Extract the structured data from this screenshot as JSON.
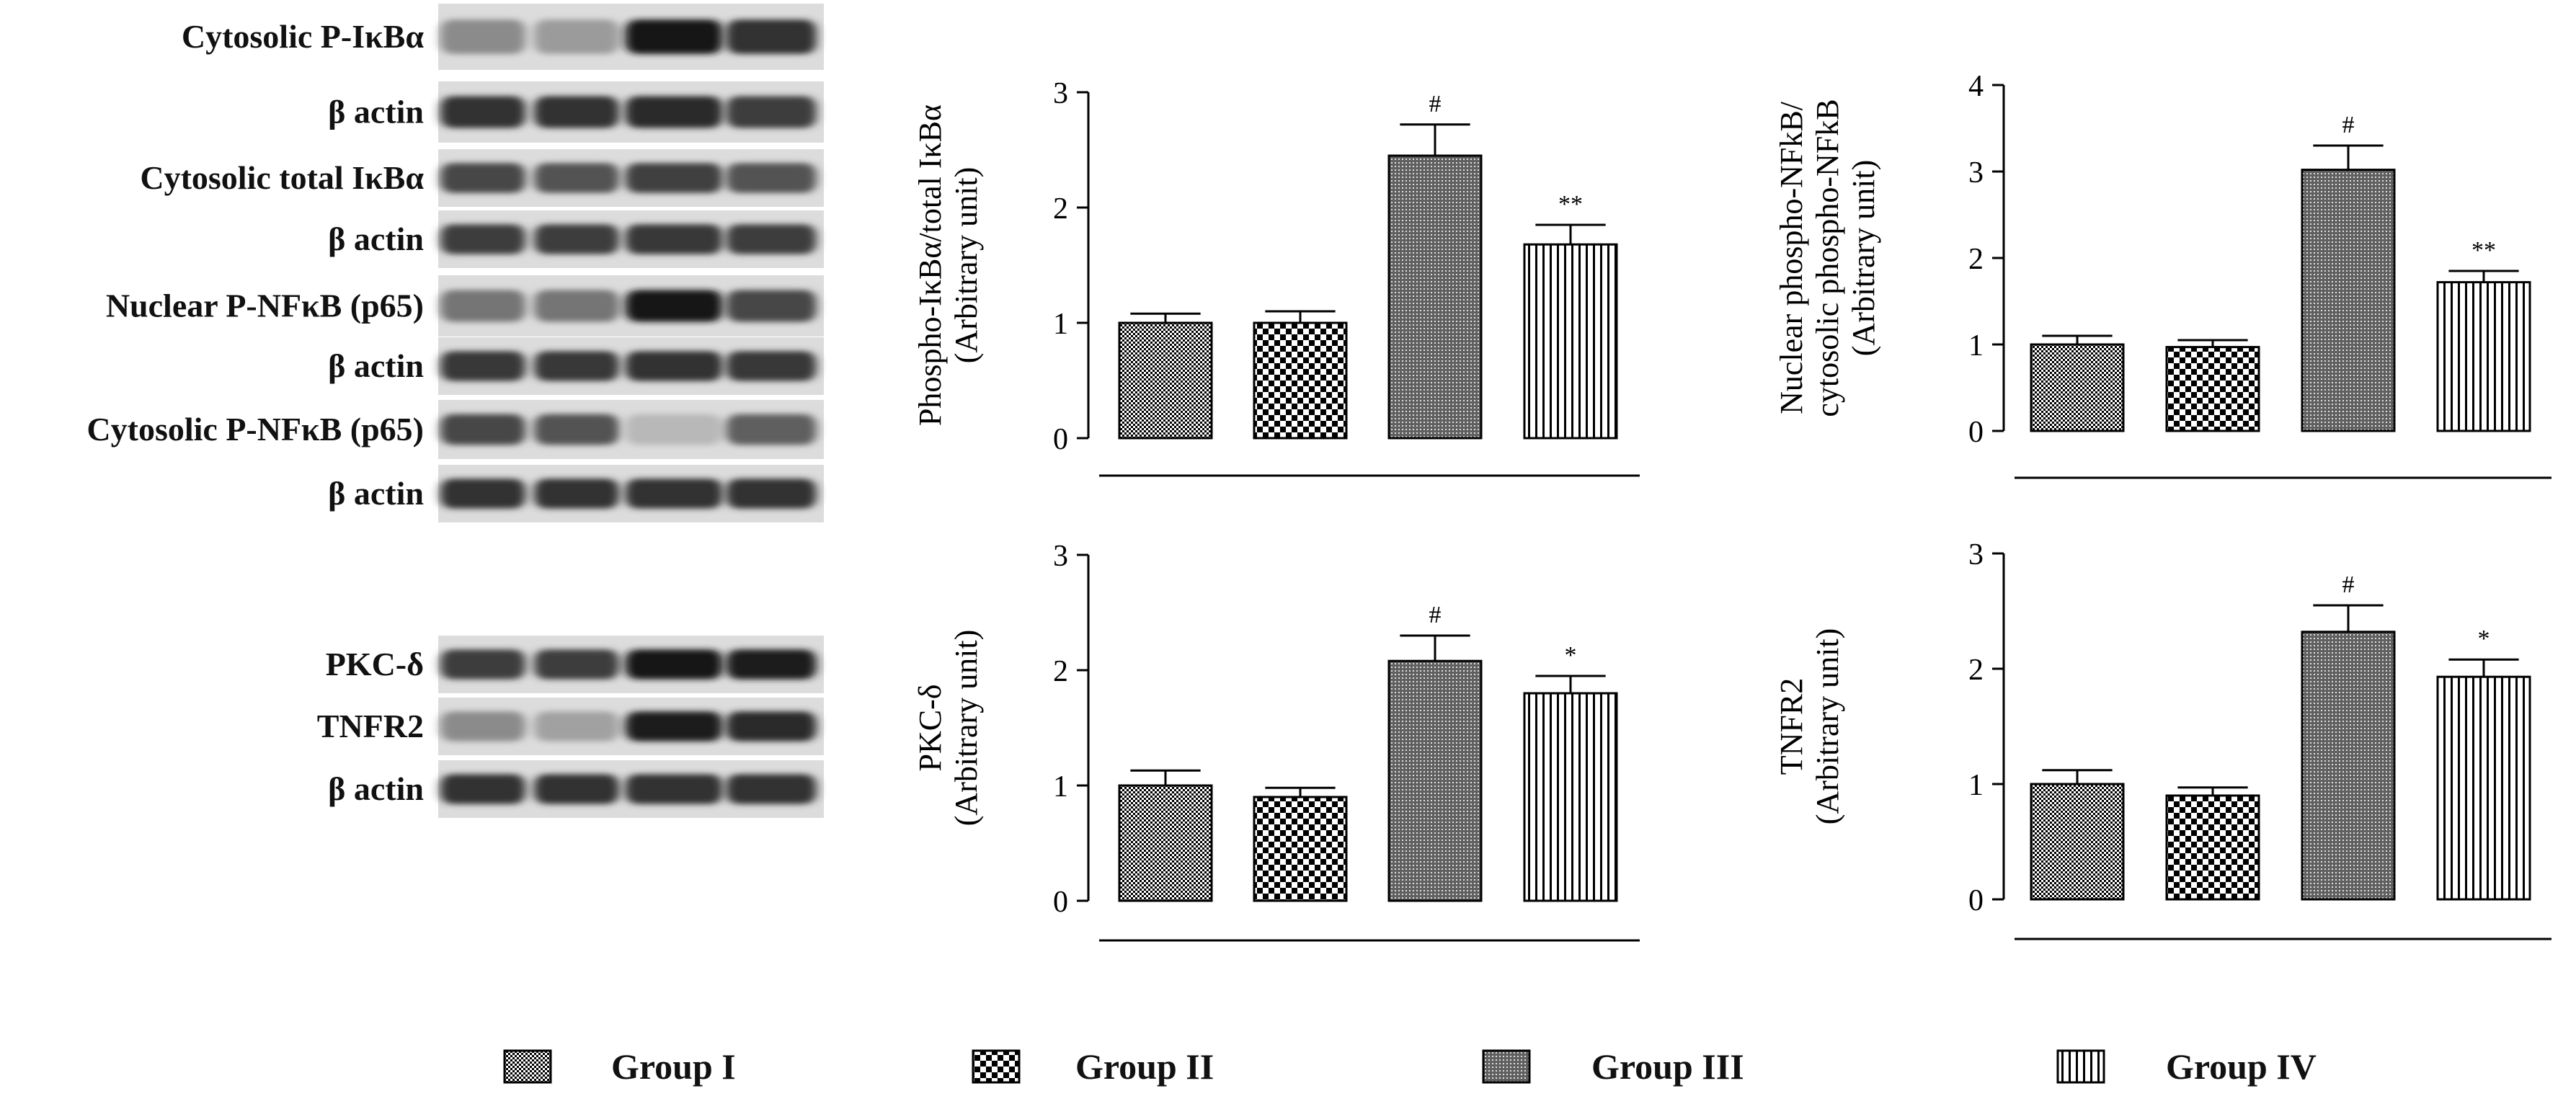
{
  "blots": [
    {
      "label": "Cytosolic P-IκBα",
      "intensities": [
        0.45,
        0.38,
        0.98,
        0.85
      ]
    },
    {
      "label": "β actin",
      "intensities": [
        0.85,
        0.85,
        0.88,
        0.8
      ]
    },
    {
      "label": "Cytosolic total IκBα",
      "intensities": [
        0.75,
        0.7,
        0.78,
        0.7
      ]
    },
    {
      "label": "β actin",
      "intensities": [
        0.8,
        0.8,
        0.82,
        0.8
      ]
    },
    {
      "label": "Nuclear P-NFκB (p65)",
      "intensities": [
        0.55,
        0.55,
        0.98,
        0.75
      ]
    },
    {
      "label": "β actin",
      "intensities": [
        0.82,
        0.82,
        0.85,
        0.82
      ]
    },
    {
      "label": "Cytosolic P-NFκB (p65)",
      "intensities": [
        0.75,
        0.7,
        0.25,
        0.65
      ]
    },
    {
      "label": "β actin",
      "intensities": [
        0.85,
        0.85,
        0.85,
        0.85
      ]
    },
    {
      "label": "PKC-δ",
      "intensities": [
        0.8,
        0.8,
        0.98,
        0.95
      ]
    },
    {
      "label": "TNFR2",
      "intensities": [
        0.45,
        0.35,
        0.95,
        0.88
      ]
    },
    {
      "label": "β actin",
      "intensities": [
        0.85,
        0.85,
        0.85,
        0.85
      ]
    }
  ],
  "legend": [
    {
      "label": "Group I",
      "pattern": "dense-check"
    },
    {
      "label": "Group II",
      "pattern": "checker"
    },
    {
      "label": "Group III",
      "pattern": "dots"
    },
    {
      "label": "Group IV",
      "pattern": "vertical-lines"
    }
  ],
  "chart_data": [
    {
      "type": "bar",
      "ylabel": [
        "Phospho-IκBα/total IκBα",
        "(Arbitrary unit)"
      ],
      "categories": [
        "Group I",
        "Group II",
        "Group III",
        "Group IV"
      ],
      "values": [
        1.0,
        1.0,
        2.45,
        1.68
      ],
      "errors": [
        0.08,
        0.1,
        0.27,
        0.17
      ],
      "significance": [
        "",
        "",
        "#",
        "**"
      ],
      "ylim": [
        0,
        3
      ],
      "yticks": [
        0,
        1,
        2,
        3
      ]
    },
    {
      "type": "bar",
      "ylabel": [
        "Nuclear phospho-NFkB/",
        "cytosolic phospho-NFkB",
        "(Arbitrary unit)"
      ],
      "categories": [
        "Group I",
        "Group II",
        "Group III",
        "Group IV"
      ],
      "values": [
        1.0,
        0.97,
        3.02,
        1.72
      ],
      "errors": [
        0.1,
        0.08,
        0.28,
        0.13
      ],
      "significance": [
        "",
        "",
        "#",
        "**"
      ],
      "ylim": [
        0,
        4
      ],
      "yticks": [
        0,
        1,
        2,
        3,
        4
      ]
    },
    {
      "type": "bar",
      "ylabel": [
        "PKC-δ",
        "(Arbitrary unit)"
      ],
      "categories": [
        "Group I",
        "Group II",
        "Group III",
        "Group IV"
      ],
      "values": [
        1.0,
        0.9,
        2.08,
        1.8
      ],
      "errors": [
        0.13,
        0.08,
        0.22,
        0.15
      ],
      "significance": [
        "",
        "",
        "#",
        "*"
      ],
      "ylim": [
        0,
        3
      ],
      "yticks": [
        0,
        1,
        2,
        3
      ]
    },
    {
      "type": "bar",
      "ylabel": [
        "TNFR2",
        "(Arbitrary unit)"
      ],
      "categories": [
        "Group I",
        "Group II",
        "Group III",
        "Group IV"
      ],
      "values": [
        1.0,
        0.9,
        2.32,
        1.93
      ],
      "errors": [
        0.12,
        0.07,
        0.23,
        0.15
      ],
      "significance": [
        "",
        "",
        "#",
        "*"
      ],
      "ylim": [
        0,
        3
      ],
      "yticks": [
        0,
        1,
        2,
        3
      ]
    }
  ]
}
